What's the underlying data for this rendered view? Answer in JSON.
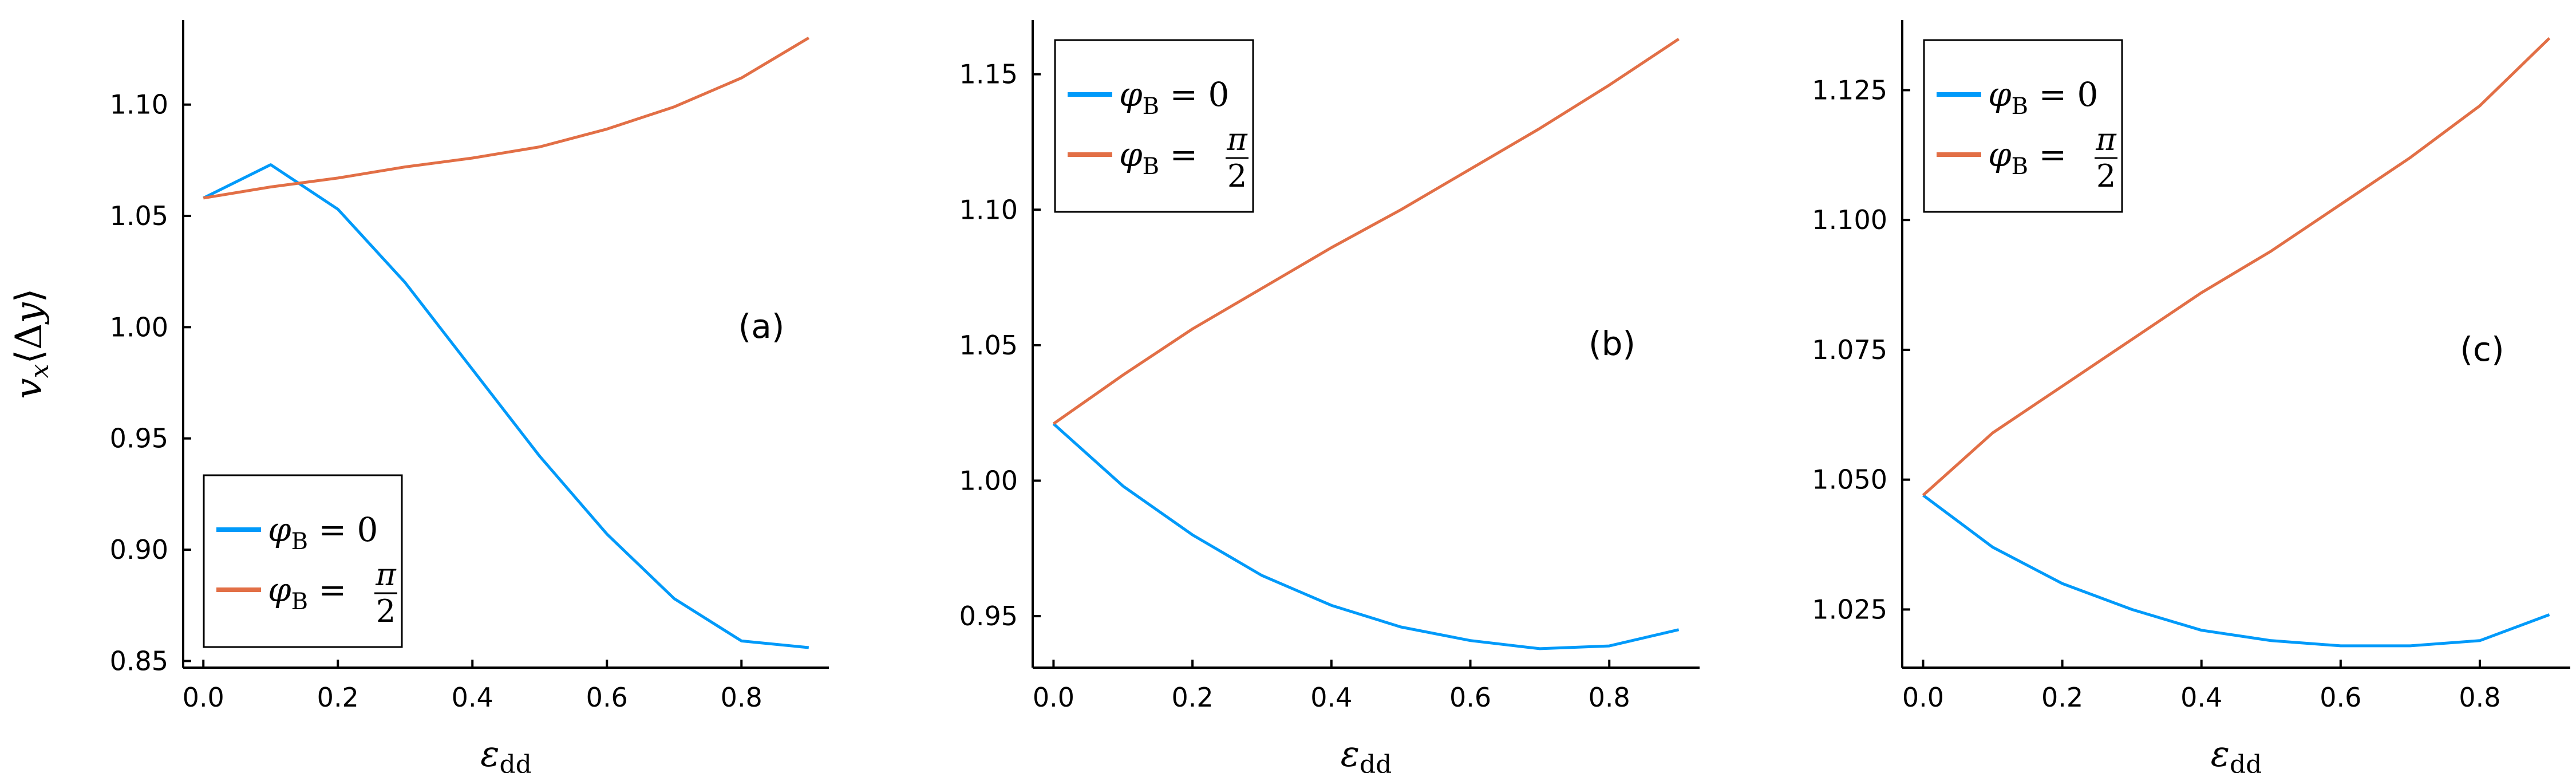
{
  "figure": {
    "ylabel": "v_x⟨Δy⟩",
    "xlabel": "ε_dd"
  },
  "chart_data": [
    {
      "type": "line",
      "panel_label": "(a)",
      "xlabel": "ε_dd",
      "ylabel": "v_x⟨Δy⟩",
      "x": [
        0.0,
        0.1,
        0.2,
        0.3,
        0.4,
        0.5,
        0.6,
        0.7,
        0.8,
        0.9
      ],
      "xlim": [
        -0.03,
        0.93
      ],
      "ylim": [
        0.847,
        1.138
      ],
      "xticks": [
        0.0,
        0.2,
        0.4,
        0.6,
        0.8
      ],
      "yticks": [
        0.85,
        0.9,
        0.95,
        1.0,
        1.05,
        1.1
      ],
      "xtick_labels": [
        "0.0",
        "0.2",
        "0.4",
        "0.6",
        "0.8"
      ],
      "ytick_labels": [
        "0.85",
        "0.90",
        "0.95",
        "1.00",
        "1.05",
        "1.10"
      ],
      "legend_position": "bottom-left",
      "grid": false,
      "series": [
        {
          "name": "φ_B = 0",
          "color": "#009afa",
          "values": [
            1.058,
            1.073,
            1.053,
            1.02,
            0.981,
            0.942,
            0.907,
            0.878,
            0.859,
            0.856
          ]
        },
        {
          "name": "φ_B = π/2",
          "color": "#e26f46",
          "values": [
            1.058,
            1.063,
            1.067,
            1.072,
            1.076,
            1.081,
            1.089,
            1.099,
            1.112,
            1.13
          ]
        }
      ]
    },
    {
      "type": "line",
      "panel_label": "(b)",
      "xlabel": "ε_dd",
      "ylabel": "",
      "x": [
        0.0,
        0.1,
        0.2,
        0.3,
        0.4,
        0.5,
        0.6,
        0.7,
        0.8,
        0.9
      ],
      "xlim": [
        -0.03,
        0.93
      ],
      "ylim": [
        0.931,
        1.17
      ],
      "xticks": [
        0.0,
        0.2,
        0.4,
        0.6,
        0.8
      ],
      "yticks": [
        0.95,
        1.0,
        1.05,
        1.1,
        1.15
      ],
      "xtick_labels": [
        "0.0",
        "0.2",
        "0.4",
        "0.6",
        "0.8"
      ],
      "ytick_labels": [
        "0.95",
        "1.00",
        "1.05",
        "1.10",
        "1.15"
      ],
      "legend_position": "top-left",
      "grid": false,
      "series": [
        {
          "name": "φ_B = 0",
          "color": "#009afa",
          "values": [
            1.021,
            0.998,
            0.98,
            0.965,
            0.954,
            0.946,
            0.941,
            0.938,
            0.939,
            0.945
          ]
        },
        {
          "name": "φ_B = π/2",
          "color": "#e26f46",
          "values": [
            1.021,
            1.039,
            1.056,
            1.071,
            1.086,
            1.1,
            1.115,
            1.13,
            1.146,
            1.163
          ]
        }
      ]
    },
    {
      "type": "line",
      "panel_label": "(c)",
      "xlabel": "ε_dd",
      "ylabel": "",
      "x": [
        0.0,
        0.1,
        0.2,
        0.3,
        0.4,
        0.5,
        0.6,
        0.7,
        0.8,
        0.9
      ],
      "xlim": [
        -0.03,
        0.93
      ],
      "ylim": [
        1.0138,
        1.1385
      ],
      "xticks": [
        0.0,
        0.2,
        0.4,
        0.6,
        0.8
      ],
      "yticks": [
        1.025,
        1.05,
        1.075,
        1.1,
        1.125
      ],
      "xtick_labels": [
        "0.0",
        "0.2",
        "0.4",
        "0.6",
        "0.8"
      ],
      "ytick_labels": [
        "1.025",
        "1.050",
        "1.075",
        "1.100",
        "1.125"
      ],
      "legend_position": "top-left",
      "grid": false,
      "series": [
        {
          "name": "φ_B = 0",
          "color": "#009afa",
          "values": [
            1.047,
            1.037,
            1.03,
            1.025,
            1.021,
            1.019,
            1.018,
            1.018,
            1.019,
            1.024
          ]
        },
        {
          "name": "φ_B = π/2",
          "color": "#e26f46",
          "values": [
            1.047,
            1.059,
            1.068,
            1.077,
            1.086,
            1.094,
            1.103,
            1.112,
            1.122,
            1.135
          ]
        }
      ]
    }
  ]
}
